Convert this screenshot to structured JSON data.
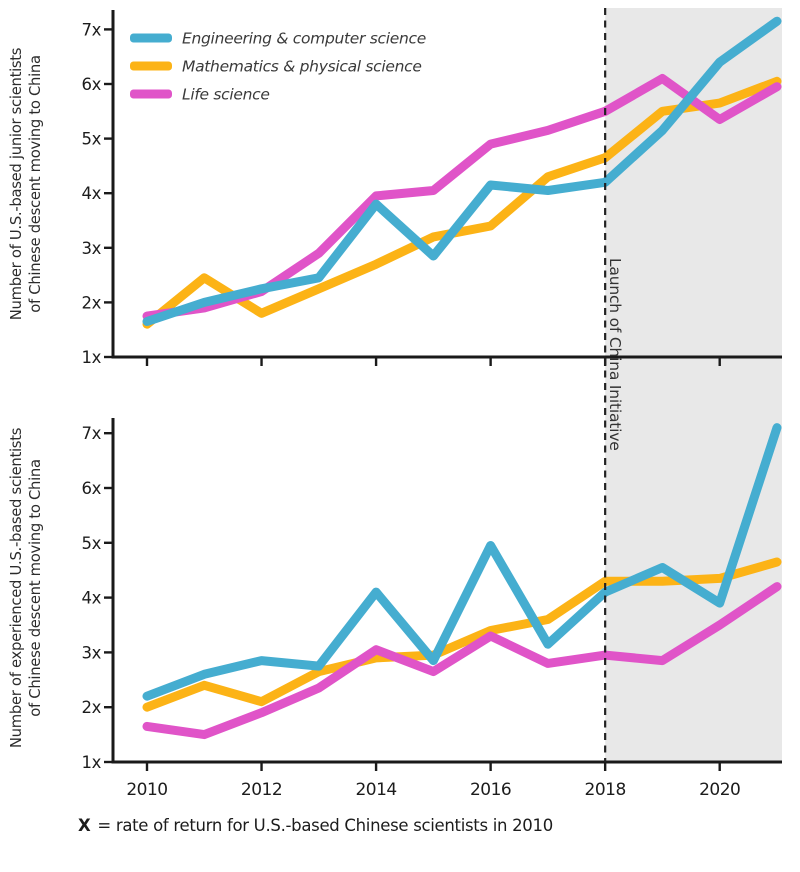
{
  "figure": {
    "annotation": "Launch of China Initiative",
    "footnote": {
      "symbol": "X",
      "text": "= rate of return for U.S.-based Chinese scientists in 2010"
    },
    "colors": {
      "engineering": "#45ADD0",
      "mathematics": "#FCB316",
      "life": "#E054C8",
      "shade": "#E8E8E8",
      "axis": "#1A1A1A",
      "dashed_line": "#222222",
      "text": "#333333"
    },
    "legend": {
      "position": "upper-left",
      "entries": [
        {
          "label": "Engineering & computer science",
          "color": "#45ADD0"
        },
        {
          "label": "Mathematics & physical science",
          "color": "#FCB316"
        },
        {
          "label": "Life science",
          "color": "#E054C8"
        }
      ]
    }
  },
  "chart_data": [
    {
      "type": "line",
      "title": "",
      "ylabel": "Number of U.S.-based junior scientists of Chinese descent moving to China",
      "ylabel_lines": [
        "Number of U.S.-based junior scientists",
        "of Chinese descent moving to China"
      ],
      "x": [
        2010,
        2011,
        2012,
        2013,
        2014,
        2015,
        2016,
        2017,
        2018,
        2019,
        2020,
        2021
      ],
      "series": [
        {
          "name": "Engineering & computer science",
          "color": "#45ADD0",
          "values": [
            1.65,
            2.0,
            2.25,
            2.45,
            3.8,
            2.85,
            4.15,
            4.05,
            4.2,
            5.15,
            6.4,
            7.15
          ]
        },
        {
          "name": "Mathematics & physical science",
          "color": "#FCB316",
          "values": [
            1.6,
            2.45,
            1.8,
            2.25,
            2.7,
            3.2,
            3.4,
            4.3,
            4.65,
            5.5,
            5.65,
            6.05
          ]
        },
        {
          "name": "Life science",
          "color": "#E054C8",
          "values": [
            1.75,
            1.9,
            2.2,
            2.9,
            3.95,
            4.05,
            4.9,
            5.15,
            5.5,
            6.1,
            5.35,
            5.95
          ]
        }
      ],
      "ylim": [
        1,
        7.3
      ],
      "xlim": [
        2010,
        2021
      ],
      "ytick_labels": [
        "1x",
        "2x",
        "3x",
        "4x",
        "5x",
        "6x",
        "7x"
      ],
      "xticks": [
        2010,
        2012,
        2014,
        2016,
        2018,
        2020
      ],
      "xtick_labels_shown": false,
      "grid": false,
      "shaded_region_start": 2018,
      "annotation_x": 2018
    },
    {
      "type": "line",
      "title": "",
      "ylabel": "Number of experienced U.S.-based scientists of Chinese descent moving to China",
      "ylabel_lines": [
        "Number of experienced U.S.-based scientists",
        "of Chinese descent moving to China"
      ],
      "x": [
        2010,
        2011,
        2012,
        2013,
        2014,
        2015,
        2016,
        2017,
        2018,
        2019,
        2020,
        2021
      ],
      "series": [
        {
          "name": "Engineering & computer science",
          "color": "#45ADD0",
          "values": [
            2.2,
            2.6,
            2.85,
            2.75,
            4.1,
            2.85,
            4.95,
            3.15,
            4.1,
            4.55,
            3.9,
            7.1
          ]
        },
        {
          "name": "Mathematics & physical science",
          "color": "#FCB316",
          "values": [
            2.0,
            2.4,
            2.1,
            2.65,
            2.9,
            2.95,
            3.4,
            3.6,
            4.3,
            4.3,
            4.35,
            4.65
          ]
        },
        {
          "name": "Life science",
          "color": "#E054C8",
          "values": [
            1.65,
            1.5,
            1.9,
            2.35,
            3.05,
            2.65,
            3.3,
            2.8,
            2.95,
            2.85,
            3.5,
            4.2
          ]
        }
      ],
      "ylim": [
        1,
        7.3
      ],
      "xlim": [
        2010,
        2021
      ],
      "ytick_labels": [
        "1x",
        "2x",
        "3x",
        "4x",
        "5x",
        "6x",
        "7x"
      ],
      "xticks": [
        2010,
        2012,
        2014,
        2016,
        2018,
        2020
      ],
      "xtick_labels": [
        "2010",
        "2012",
        "2014",
        "2016",
        "2018",
        "2020"
      ],
      "xtick_labels_shown": true,
      "grid": false,
      "shaded_region_start": 2018,
      "annotation_x": 2018
    }
  ]
}
